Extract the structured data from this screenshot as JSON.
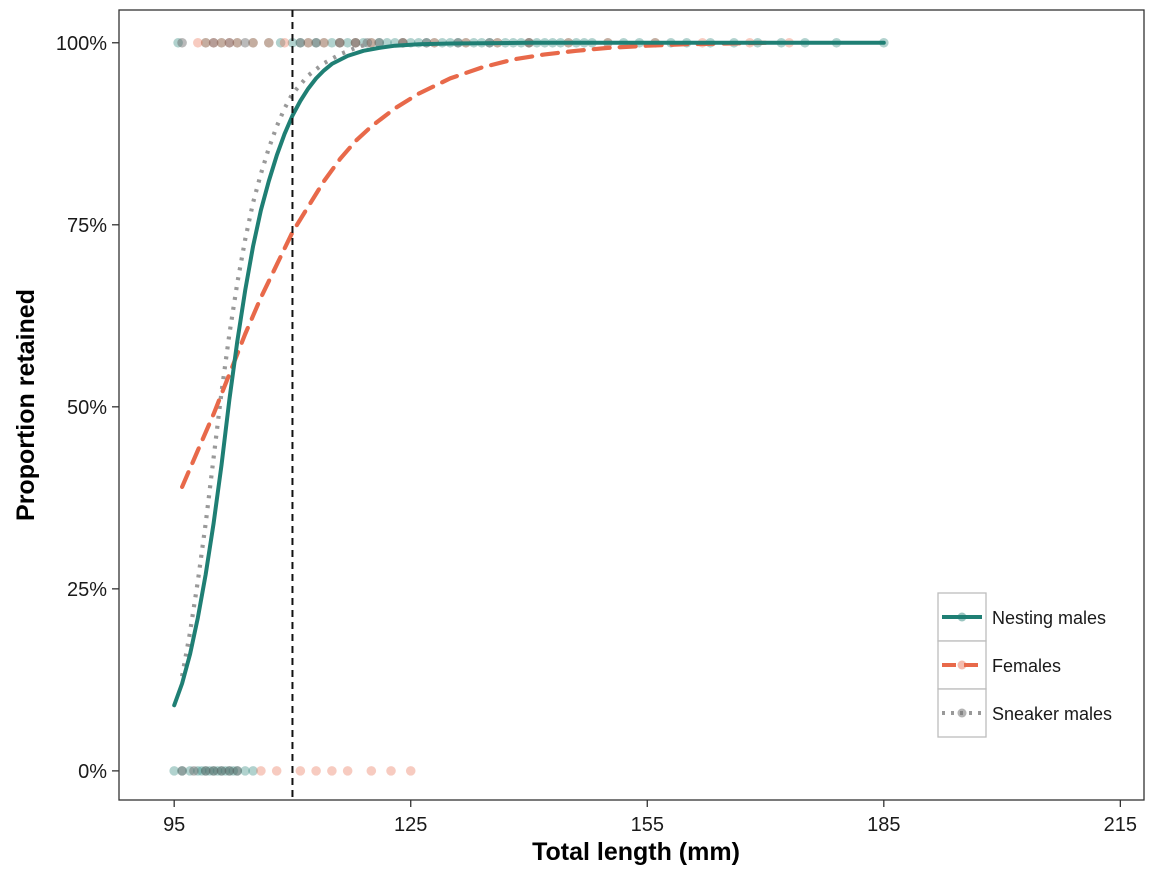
{
  "chart_data": {
    "type": "scatter",
    "title": "",
    "xlabel": "Total length (mm)",
    "ylabel": "Proportion retained",
    "xlim": [
      88,
      218
    ],
    "ylim": [
      -0.04,
      1.045
    ],
    "x_ticks": [
      95,
      125,
      155,
      185,
      215
    ],
    "y_ticks": [
      0,
      0.25,
      0.5,
      0.75,
      1.0
    ],
    "y_tick_labels": [
      "0%",
      "25%",
      "50%",
      "75%",
      "100%"
    ],
    "grid": false,
    "reference_line_x": 110,
    "legend_position": "bottom-right",
    "colors": {
      "nesting": "#1f7f74",
      "females": "#e8694a",
      "sneaker": "#999999"
    },
    "series": [
      {
        "name": "Nesting males",
        "style": "solid",
        "curve": {
          "x": [
            95,
            96,
            97,
            98,
            99,
            100,
            101,
            102,
            103,
            104,
            105,
            106,
            107,
            108,
            109,
            110,
            111,
            112,
            113,
            114,
            115,
            117,
            119,
            121,
            123,
            126,
            130,
            140,
            160,
            185
          ],
          "y": [
            0.09,
            0.12,
            0.16,
            0.21,
            0.27,
            0.34,
            0.42,
            0.51,
            0.59,
            0.66,
            0.72,
            0.77,
            0.81,
            0.845,
            0.875,
            0.9,
            0.92,
            0.937,
            0.951,
            0.962,
            0.971,
            0.982,
            0.989,
            0.993,
            0.996,
            0.998,
            0.999,
            1.0,
            1.0,
            1.0
          ]
        },
        "points_at_1": [
          95.5,
          99,
          101,
          103,
          105,
          107,
          108.5,
          110,
          111,
          112,
          113,
          114,
          115,
          116,
          117,
          118,
          119,
          120,
          121,
          122,
          123,
          124,
          125,
          126,
          127,
          128,
          129,
          130,
          131,
          132,
          133,
          134,
          135,
          136,
          137,
          138,
          139,
          140,
          141,
          142,
          143,
          144,
          145,
          146,
          147,
          148,
          150,
          152,
          154,
          156,
          158,
          160,
          163,
          166,
          169,
          172,
          175,
          179,
          185
        ],
        "points_at_0": [
          95,
          96,
          97,
          98,
          98.5,
          99,
          99.5,
          100,
          100.5,
          101,
          101.5,
          102,
          102.5,
          103,
          104,
          105
        ]
      },
      {
        "name": "Females",
        "style": "dashed",
        "curve": {
          "x": [
            96,
            98,
            100,
            102,
            104,
            106,
            108,
            110,
            112,
            114,
            116,
            118,
            120,
            123,
            126,
            130,
            134,
            138,
            142,
            146,
            150,
            155,
            160,
            165,
            170
          ],
          "y": [
            0.39,
            0.44,
            0.49,
            0.545,
            0.6,
            0.65,
            0.695,
            0.74,
            0.775,
            0.81,
            0.84,
            0.865,
            0.885,
            0.91,
            0.93,
            0.951,
            0.966,
            0.977,
            0.984,
            0.989,
            0.993,
            0.996,
            0.998,
            0.999,
            1.0
          ]
        },
        "points_at_1": [
          98,
          99,
          100,
          101,
          102,
          103,
          105,
          107,
          109,
          112,
          114,
          116,
          118,
          120,
          124,
          128,
          132,
          136,
          140,
          145,
          150,
          156,
          162,
          168,
          173
        ],
        "points_at_0": [
          106,
          108,
          111,
          113,
          115,
          117,
          120,
          122.5,
          125
        ]
      },
      {
        "name": "Sneaker males",
        "style": "dotted",
        "curve": {
          "x": [
            96,
            97,
            98,
            99,
            100,
            101,
            102,
            103,
            104,
            105,
            106,
            107,
            108,
            109,
            110,
            112,
            114,
            116,
            118,
            120
          ],
          "y": [
            0.13,
            0.19,
            0.26,
            0.34,
            0.43,
            0.52,
            0.6,
            0.67,
            0.73,
            0.78,
            0.82,
            0.855,
            0.885,
            0.91,
            0.93,
            0.955,
            0.972,
            0.984,
            0.993,
            1.0
          ]
        },
        "points_at_1": [
          96,
          100,
          102,
          104,
          111,
          113,
          116,
          118,
          119.5,
          121,
          124,
          127,
          131,
          135,
          140
        ],
        "points_at_0": [
          96,
          97.5,
          99,
          100,
          101,
          102,
          103
        ]
      }
    ]
  }
}
